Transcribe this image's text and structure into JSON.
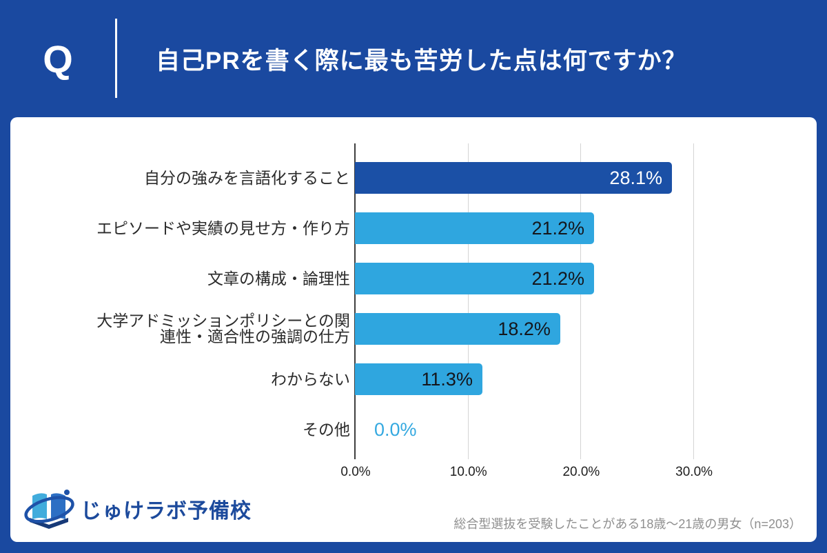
{
  "header": {
    "q_label": "Q",
    "title": "自己PRを書く際に最も苦労した点は何ですか？"
  },
  "chart_data": {
    "type": "bar",
    "orientation": "horizontal",
    "title": "自己PRを書く際に最も苦労した点は何ですか？",
    "categories": [
      "自分の強みを言語化すること",
      "エピソードや実績の見せ方・作り方",
      "文章の構成・論理性",
      "大学アドミッションポリシーとの関連性・適合性の強調の仕方",
      "わからない",
      "その他"
    ],
    "category_display": [
      "自分の強みを言語化すること",
      "エピソードや実績の見せ方・作り方",
      "文章の構成・論理性",
      "大学アドミッションポリシーとの関\n連性・適合性の強調の仕方",
      "わからない",
      "その他"
    ],
    "values": [
      28.1,
      21.2,
      21.2,
      18.2,
      11.3,
      0.0
    ],
    "value_labels": [
      "28.1%",
      "21.2%",
      "21.2%",
      "18.2%",
      "11.3%",
      "0.0%"
    ],
    "x_ticks": [
      "0.0%",
      "10.0%",
      "20.0%",
      "30.0%"
    ],
    "x_tick_values": [
      0,
      10,
      20,
      30
    ],
    "xlim": [
      0,
      37
    ],
    "grid": true,
    "legend": false,
    "bar_colors": [
      "#1B50A6",
      "#2FA6DF",
      "#2FA6DF",
      "#2FA6DF",
      "#2FA6DF",
      "#2FA6DF"
    ],
    "value_label_colors": [
      "#FFFFFF",
      "#14161C",
      "#14161C",
      "#14161C",
      "#14161C",
      "#35A9E0"
    ]
  },
  "footer": {
    "logo_text": "じゅけラボ予備校",
    "source_note": "総合型選抜を受験したことがある18歳～21歳の男女（n=203）"
  },
  "colors": {
    "page_bg": "#1A49A0",
    "card_bg": "#FFFFFF",
    "accent_dark_blue": "#1B50A6",
    "accent_light_blue": "#2FA6DF",
    "axis": "#3E3E3E",
    "gridline": "#D4D4D4",
    "source_text": "#8F8F8F"
  }
}
